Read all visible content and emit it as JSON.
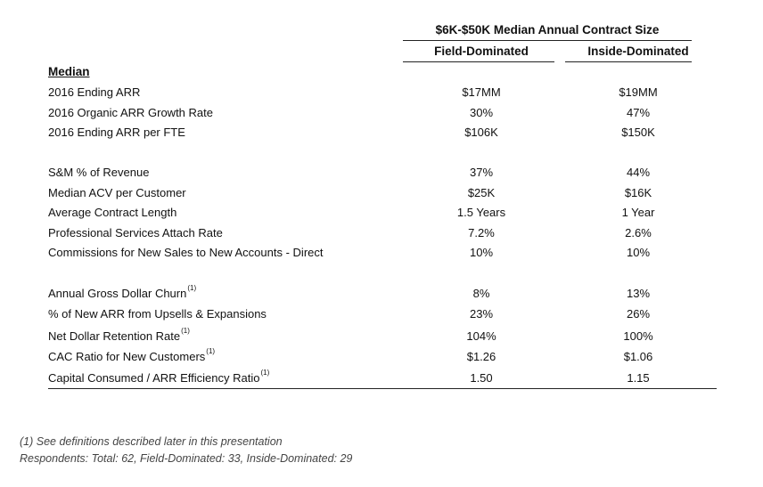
{
  "header": {
    "super_title": "$6K-$50K Median Annual Contract Size",
    "col_field": "Field-Dominated",
    "col_inside": "Inside-Dominated"
  },
  "section_label": "Median",
  "rows": [
    {
      "label": "2016 Ending ARR",
      "note": "",
      "field": "$17MM",
      "inside": "$19MM"
    },
    {
      "label": "2016 Organic ARR Growth Rate",
      "note": "",
      "field": "30%",
      "inside": "47%"
    },
    {
      "label": "2016 Ending ARR per FTE",
      "note": "",
      "field": "$106K",
      "inside": "$150K"
    },
    {
      "label": "S&M % of Revenue",
      "note": "",
      "field": "37%",
      "inside": "44%"
    },
    {
      "label": "Median ACV per Customer",
      "note": "",
      "field": "$25K",
      "inside": "$16K"
    },
    {
      "label": "Average Contract Length",
      "note": "",
      "field": "1.5 Years",
      "inside": "1 Year"
    },
    {
      "label": "Professional Services Attach Rate",
      "note": "",
      "field": "7.2%",
      "inside": "2.6%"
    },
    {
      "label": "Commissions for New Sales to New Accounts - Direct",
      "note": "",
      "field": "10%",
      "inside": "10%"
    },
    {
      "label": "Annual Gross Dollar Churn",
      "note": "(1)",
      "field": "8%",
      "inside": "13%"
    },
    {
      "label": "% of New ARR from Upsells & Expansions",
      "note": "",
      "field": "23%",
      "inside": "26%"
    },
    {
      "label": "Net Dollar Retention Rate",
      "note": "(1)",
      "field": "104%",
      "inside": "100%"
    },
    {
      "label": "CAC Ratio for New Customers",
      "note": "(1)",
      "field": "$1.26",
      "inside": "$1.06"
    },
    {
      "label": "Capital Consumed / ARR Efficiency Ratio",
      "note": "(1)",
      "field": "1.50",
      "inside": "1.15"
    }
  ],
  "footnotes": {
    "line1": "(1)   See definitions described later in this presentation",
    "line2": "Respondents: Total: 62, Field-Dominated: 33, Inside-Dominated: 29"
  }
}
